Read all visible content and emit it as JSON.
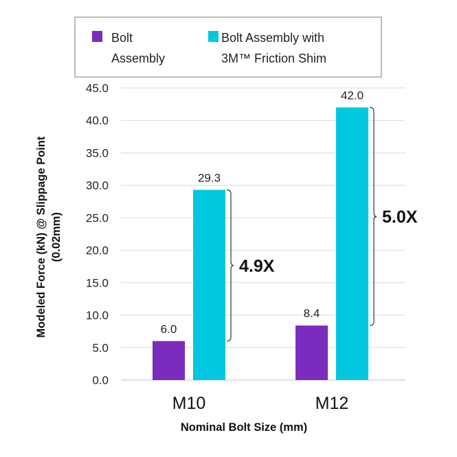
{
  "colors": {
    "series1": "#7b2cbf",
    "series2": "#00c8e0",
    "grid": "#d9d9d9",
    "legend_border": "#a6a6a6"
  },
  "chart_data": {
    "type": "bar",
    "categories": [
      "M10",
      "M12"
    ],
    "series": [
      {
        "name": "Bolt Assembly",
        "legend_lines": [
          "Bolt",
          "Assembly"
        ],
        "values": [
          6.0,
          8.4
        ],
        "labels": [
          "6.0",
          "8.4"
        ]
      },
      {
        "name": "Bolt Assembly with 3M™ Friction Shim",
        "legend_lines": [
          "Bolt Assembly with",
          "3M™ Friction Shim"
        ],
        "values": [
          29.3,
          42.0
        ],
        "labels": [
          "29.3",
          "42.0"
        ]
      }
    ],
    "xlabel": "Nominal Bolt Size (mm)",
    "ylabel_lines": [
      "Modeled Force (kN) @ Slippage Point",
      "(0.02mm)"
    ],
    "ylim": [
      0,
      45
    ],
    "yticks": [
      "0.0",
      "5.0",
      "10.0",
      "15.0",
      "20.0",
      "25.0",
      "30.0",
      "35.0",
      "40.0",
      "45.0"
    ],
    "grid": true,
    "legend_position": "top",
    "annotations": [
      "4.9X",
      "5.0X"
    ]
  }
}
